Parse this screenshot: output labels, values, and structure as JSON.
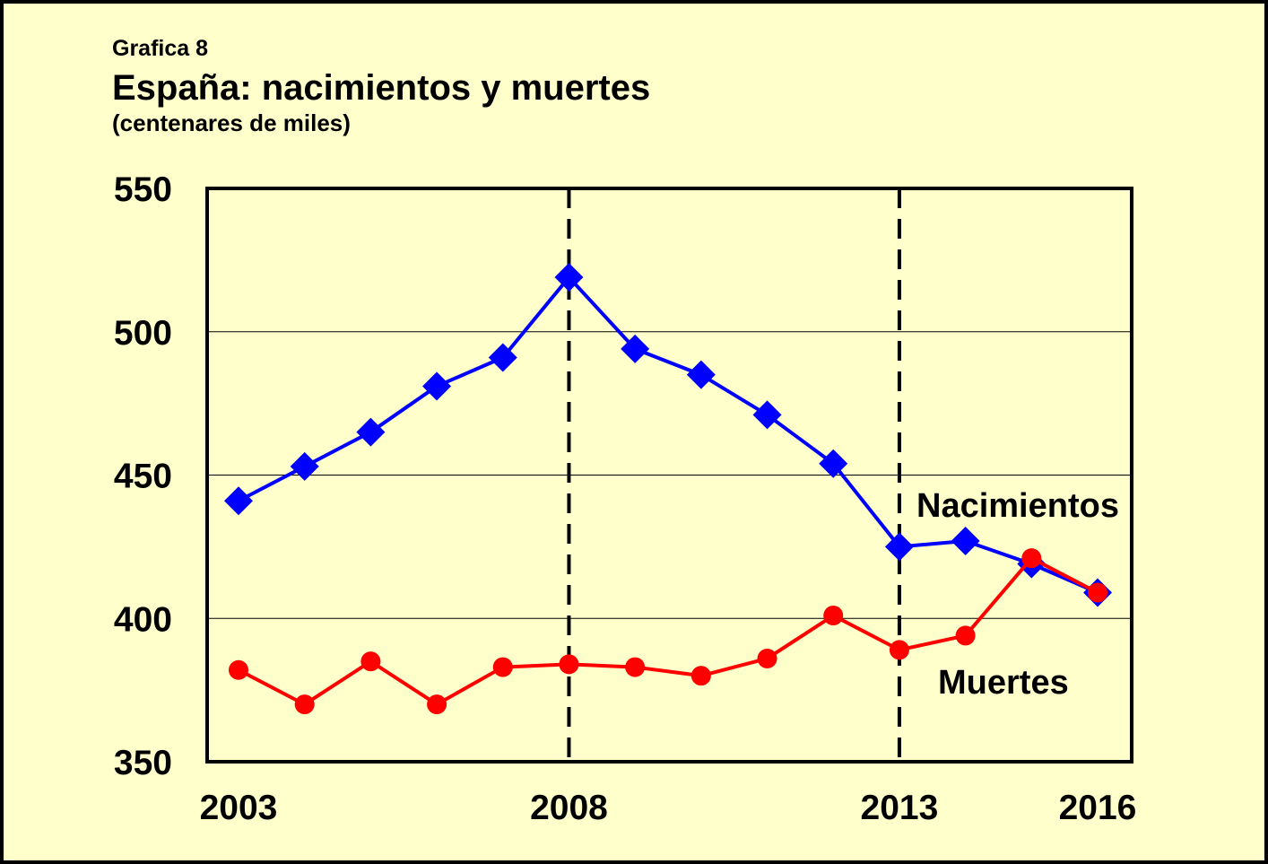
{
  "header": {
    "label": "Grafica 8",
    "title": "España: nacimientos y muertes",
    "subtitle": "(centenares de miles)"
  },
  "colors": {
    "background": "#ffffcc",
    "nacimientos": "#0000ff",
    "muertes": "#ff0000",
    "axis": "#000000"
  },
  "chart_data": {
    "type": "line",
    "title": "España: nacimientos y muertes",
    "subtitle": "(centenares de miles)",
    "xlabel": "",
    "ylabel": "",
    "x": [
      2003,
      2004,
      2005,
      2006,
      2007,
      2008,
      2009,
      2010,
      2011,
      2012,
      2013,
      2014,
      2015,
      2016
    ],
    "xlim": [
      2003,
      2016
    ],
    "ylim": [
      350,
      550
    ],
    "y_ticks": [
      350,
      400,
      450,
      500,
      550
    ],
    "x_tick_labels": [
      "2003",
      "2008",
      "2013",
      "2016"
    ],
    "x_ticks": [
      2003,
      2008,
      2013,
      2016
    ],
    "reference_lines": [
      2008,
      2013
    ],
    "grid": "horizontal",
    "series": [
      {
        "name": "Nacimientos",
        "marker": "diamond",
        "color": "#0000ff",
        "values": [
          441,
          453,
          465,
          481,
          491,
          519,
          494,
          485,
          471,
          454,
          425,
          427,
          419,
          409
        ]
      },
      {
        "name": "Muertes",
        "marker": "circle",
        "color": "#ff0000",
        "values": [
          382,
          370,
          385,
          370,
          383,
          384,
          383,
          380,
          386,
          401,
          389,
          394,
          421,
          409
        ]
      }
    ]
  }
}
